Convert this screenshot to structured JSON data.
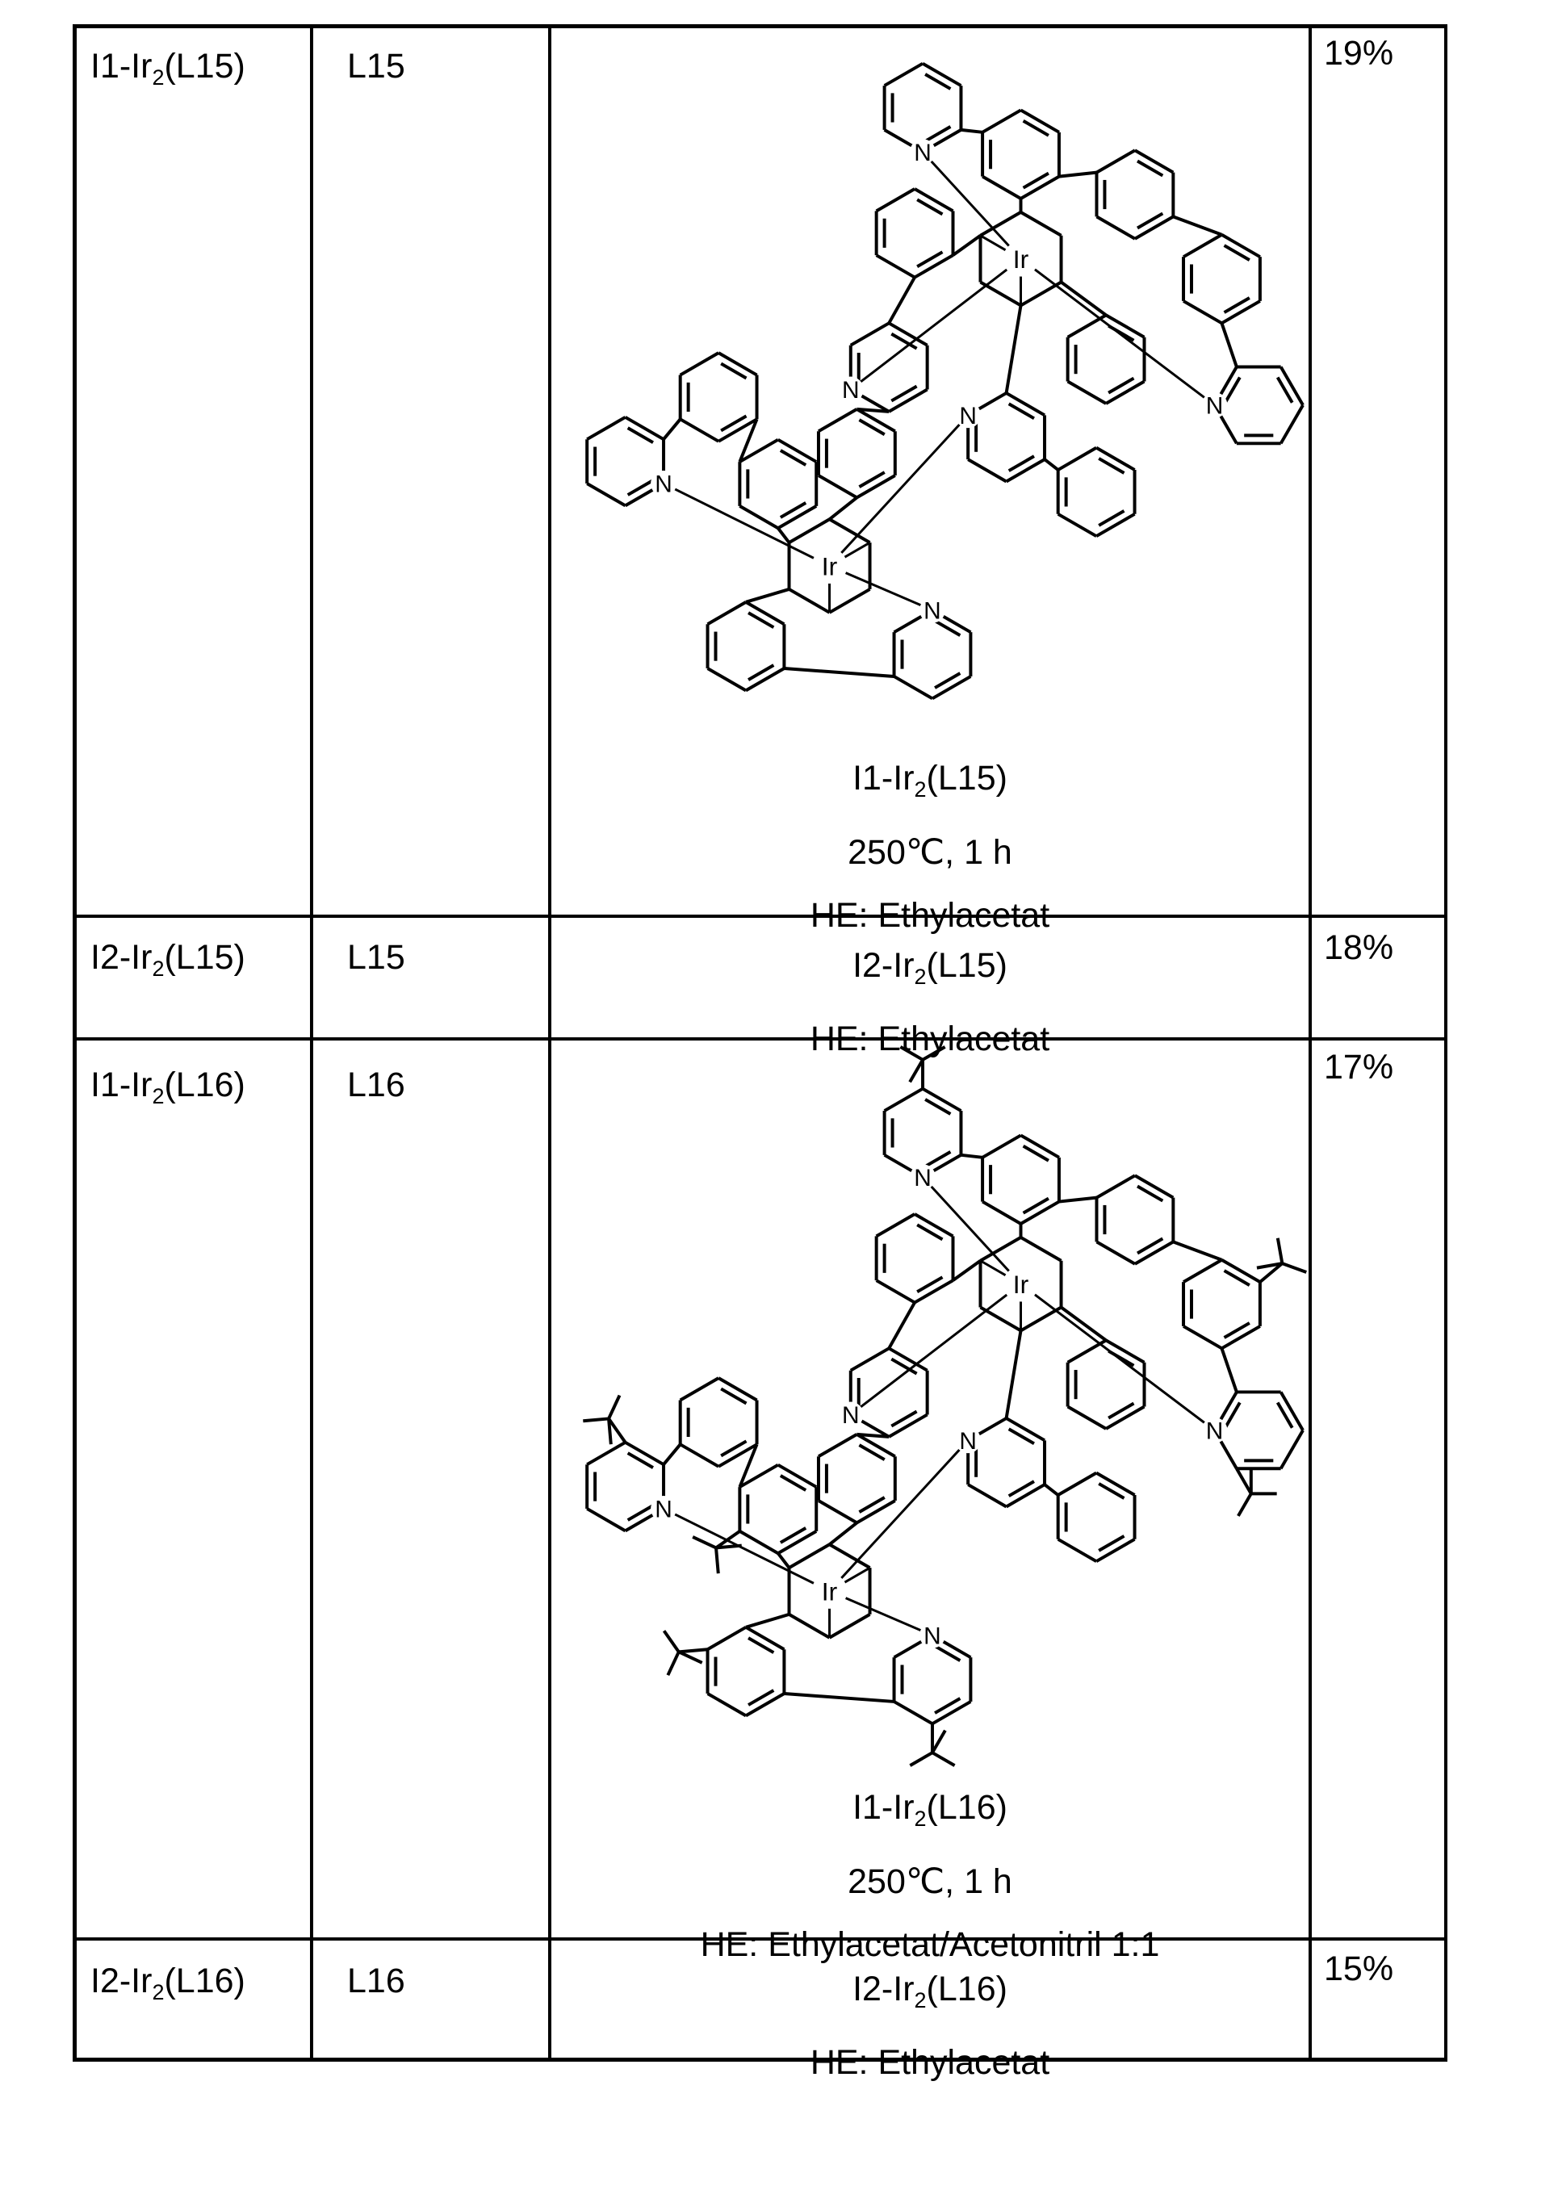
{
  "table": {
    "rows": [
      {
        "compound": {
          "pre": "I1-Ir",
          "sub": "2",
          "post": "(L15)"
        },
        "ligand": "L15",
        "yield": "19%",
        "caption": {
          "name": {
            "pre": "I1-Ir",
            "sub": "2",
            "post": "(L15)"
          },
          "conditions": "250℃, 1 h",
          "he": "HE: Ethylacetat"
        }
      },
      {
        "compound": {
          "pre": "I2-Ir",
          "sub": "2",
          "post": "(L15)"
        },
        "ligand": "L15",
        "yield": "18%",
        "caption": {
          "name": {
            "pre": "I2-Ir",
            "sub": "2",
            "post": "(L15)"
          },
          "he": "HE: Ethylacetat"
        }
      },
      {
        "compound": {
          "pre": "I1-Ir",
          "sub": "2",
          "post": "(L16)"
        },
        "ligand": "L16",
        "yield": "17%",
        "caption": {
          "name": {
            "pre": "I1-Ir",
            "sub": "2",
            "post": "(L16)"
          },
          "conditions": "250℃, 1 h",
          "he": "HE: Ethylacetat/Acetonitril 1:1"
        }
      },
      {
        "compound": {
          "pre": "I2-Ir",
          "sub": "2",
          "post": "(L16)"
        },
        "ligand": "L16",
        "yield": "15%",
        "caption": {
          "name": {
            "pre": "I2-Ir",
            "sub": "2",
            "post": "(L16)"
          },
          "he": "HE: Ethylacetat"
        }
      }
    ]
  },
  "structure_labels": {
    "metal": "Ir",
    "nitrogen": "N"
  },
  "colors": {
    "ink": "#000000",
    "paper": "#ffffff"
  }
}
